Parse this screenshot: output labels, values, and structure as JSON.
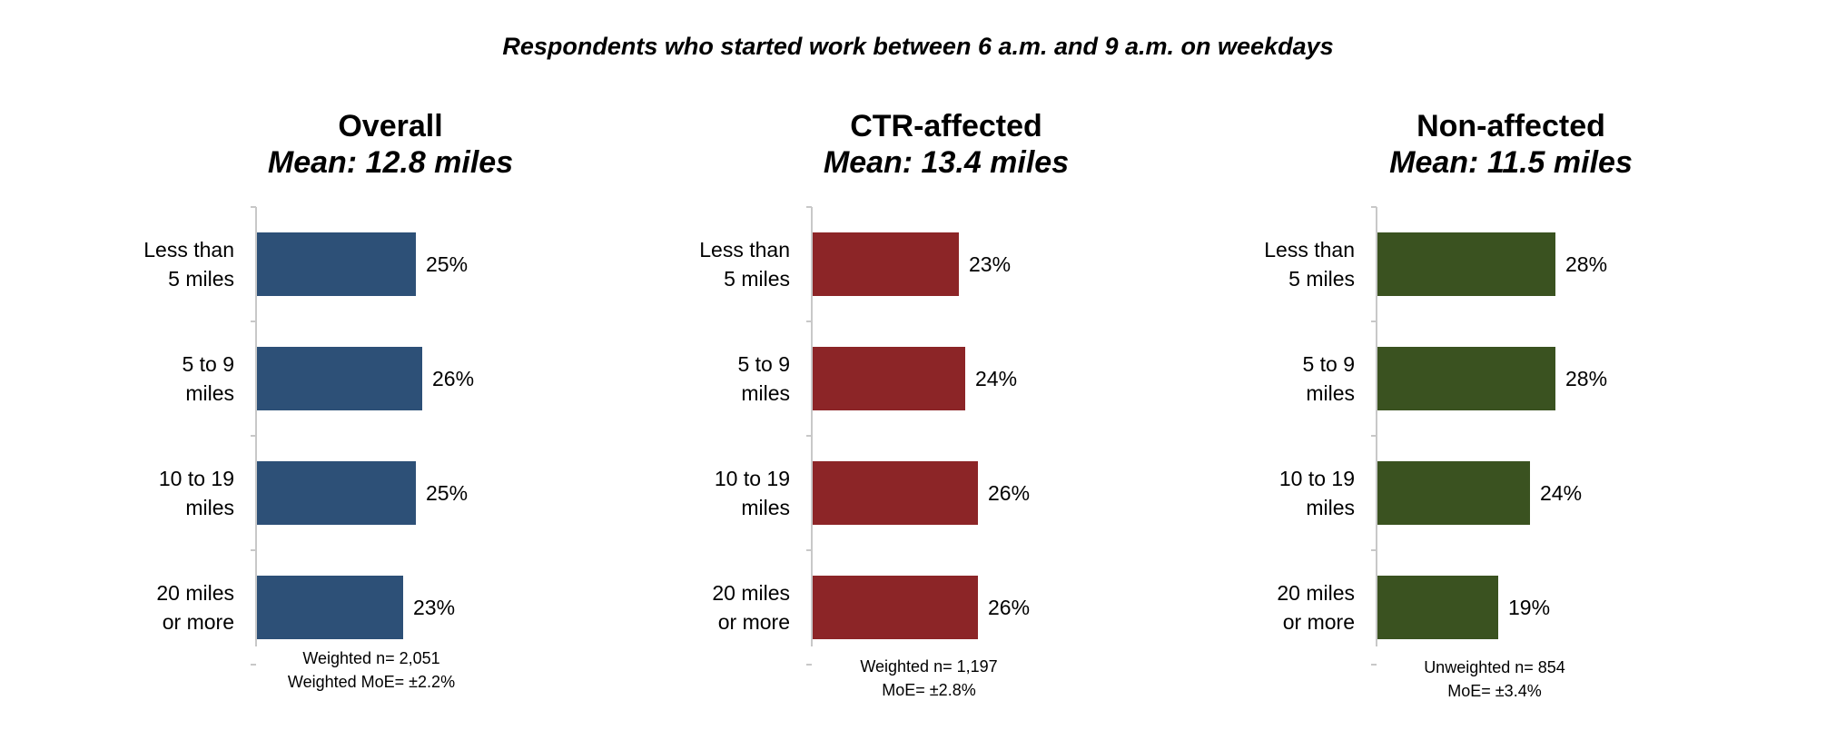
{
  "title": "Respondents who started work between 6 a.m. and 9 a.m. on weekdays",
  "chart_data": [
    {
      "type": "bar",
      "orientation": "horizontal",
      "title": "Overall",
      "subtitle": "Mean: 12.8 miles",
      "categories": [
        [
          "Less than",
          "5 miles"
        ],
        [
          "5 to 9",
          "miles"
        ],
        [
          "10 to 19",
          "miles"
        ],
        [
          "20 miles",
          "or more"
        ]
      ],
      "values": [
        25,
        26,
        25,
        23
      ],
      "value_labels": [
        "25%",
        "26%",
        "25%",
        "23%"
      ],
      "color": "#2d5077",
      "xlim": [
        0,
        40
      ],
      "footnote": [
        "Weighted n= 2,051",
        "Weighted MoE= ±2.2%"
      ]
    },
    {
      "type": "bar",
      "orientation": "horizontal",
      "title": "CTR-affected",
      "subtitle": "Mean: 13.4 miles",
      "categories": [
        [
          "Less than",
          "5 miles"
        ],
        [
          "5 to 9",
          "miles"
        ],
        [
          "10 to 19",
          "miles"
        ],
        [
          "20 miles",
          "or more"
        ]
      ],
      "values": [
        23,
        24,
        26,
        26
      ],
      "value_labels": [
        "23%",
        "24%",
        "26%",
        "26%"
      ],
      "color": "#8c2527",
      "xlim": [
        0,
        40
      ],
      "footnote": [
        "Weighted n= 1,197",
        "MoE= ±2.8%"
      ]
    },
    {
      "type": "bar",
      "orientation": "horizontal",
      "title": "Non-affected",
      "subtitle": "Mean: 11.5 miles",
      "categories": [
        [
          "Less than",
          "5 miles"
        ],
        [
          "5 to 9",
          "miles"
        ],
        [
          "10 to 19",
          "miles"
        ],
        [
          "20 miles",
          "or more"
        ]
      ],
      "values": [
        28,
        28,
        24,
        19
      ],
      "value_labels": [
        "28%",
        "28%",
        "24%",
        "19%"
      ],
      "color": "#3a5220",
      "xlim": [
        0,
        40
      ],
      "footnote": [
        "Unweighted n= 854",
        "MoE= ±3.4%"
      ]
    }
  ]
}
